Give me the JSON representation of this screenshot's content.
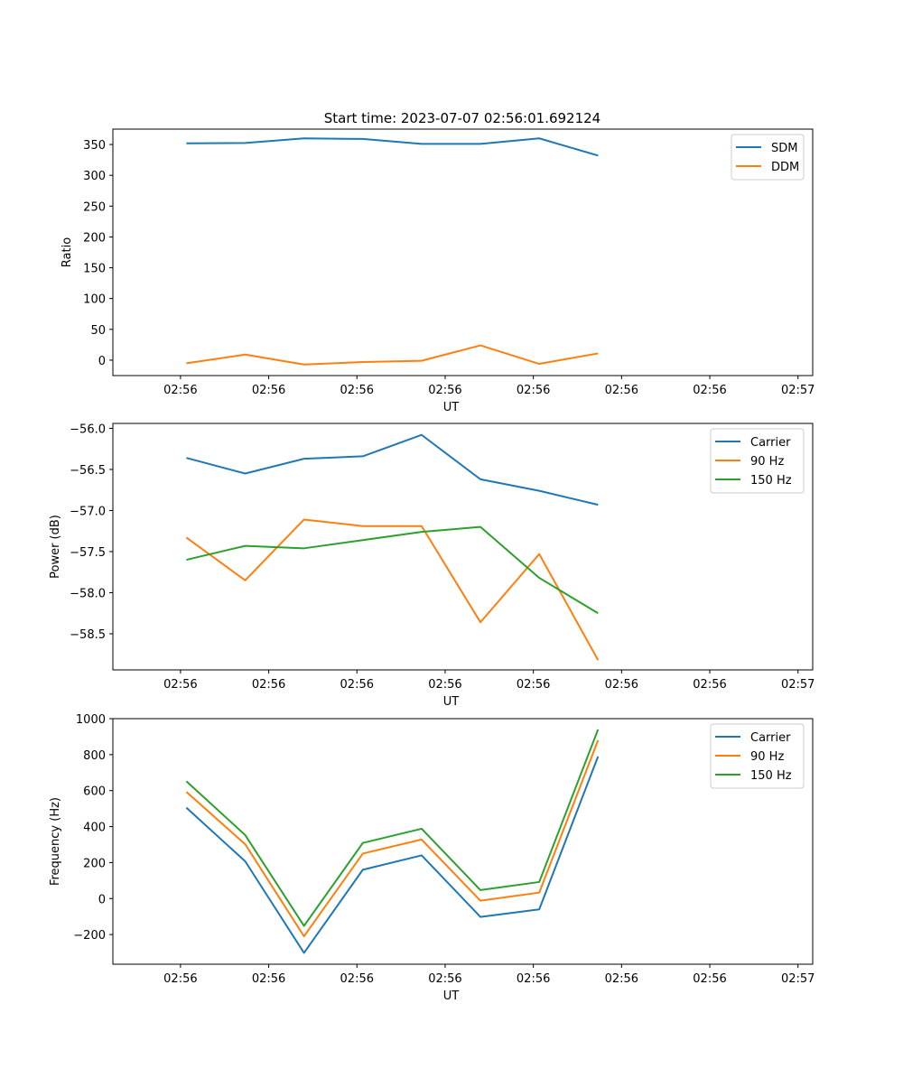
{
  "figure_title": "Start time: 2023-07-07 02:56:01.692124",
  "colors": {
    "blue": "#1f77b4",
    "orange": "#ff7f0e",
    "green": "#2ca02c"
  },
  "chart_data": [
    {
      "type": "line",
      "title": "Start time: 2023-07-07 02:56:01.692124",
      "xlabel": "UT",
      "ylabel": "Ratio",
      "x_tick_labels": [
        "02:56",
        "02:56",
        "02:56",
        "02:56",
        "02:56",
        "02:56",
        "02:56",
        "02:57"
      ],
      "y_ticks": [
        0,
        50,
        100,
        150,
        200,
        250,
        300,
        350
      ],
      "ylim": [
        -25,
        375
      ],
      "x_index_range": [
        -0.5,
        8.5
      ],
      "x": [
        0,
        1,
        2,
        3,
        4,
        5,
        6,
        7
      ],
      "series": [
        {
          "name": "SDM",
          "color": "#1f77b4",
          "values": [
            352,
            352.5,
            360,
            359,
            351,
            351,
            360,
            332
          ]
        },
        {
          "name": "DDM",
          "color": "#ff7f0e",
          "values": [
            -5,
            9,
            -7,
            -3,
            -1,
            24,
            -6,
            11
          ]
        }
      ],
      "legend_position": "top-right"
    },
    {
      "type": "line",
      "title": "",
      "xlabel": "UT",
      "ylabel": "Power (dB)",
      "x_tick_labels": [
        "02:56",
        "02:56",
        "02:56",
        "02:56",
        "02:56",
        "02:56",
        "02:56",
        "02:57"
      ],
      "y_ticks": [
        -58.5,
        -58.0,
        -57.5,
        -57.0,
        -56.5,
        -56.0
      ],
      "y_tick_labels": [
        "−58.5",
        "−58.0",
        "−57.5",
        "−57.0",
        "−56.5",
        "−56.0"
      ],
      "ylim": [
        -58.94,
        -55.94
      ],
      "x_index_range": [
        -0.5,
        8.5
      ],
      "x": [
        0,
        1,
        2,
        3,
        4,
        5,
        6,
        7
      ],
      "series": [
        {
          "name": "Carrier",
          "color": "#1f77b4",
          "values": [
            -56.36,
            -56.55,
            -56.37,
            -56.34,
            -56.08,
            -56.62,
            -56.76,
            -56.93
          ]
        },
        {
          "name": "90 Hz",
          "color": "#ff7f0e",
          "values": [
            -57.33,
            -57.85,
            -57.11,
            -57.19,
            -57.19,
            -58.36,
            -57.53,
            -58.82
          ]
        },
        {
          "name": "150 Hz",
          "color": "#2ca02c",
          "values": [
            -57.6,
            -57.43,
            -57.46,
            -57.36,
            -57.26,
            -57.2,
            -57.82,
            -58.25
          ]
        }
      ],
      "legend_position": "top-right"
    },
    {
      "type": "line",
      "title": "",
      "xlabel": "UT",
      "ylabel": "Frequency (Hz)",
      "x_tick_labels": [
        "02:56",
        "02:56",
        "02:56",
        "02:56",
        "02:56",
        "02:56",
        "02:56",
        "02:57"
      ],
      "y_ticks": [
        -200,
        0,
        200,
        400,
        600,
        800,
        1000
      ],
      "y_tick_labels": [
        "−200",
        "0",
        "200",
        "400",
        "600",
        "800",
        "1000"
      ],
      "ylim": [
        -365,
        1000
      ],
      "x_index_range": [
        -0.5,
        8.5
      ],
      "x": [
        0,
        1,
        2,
        3,
        4,
        5,
        6,
        7
      ],
      "series": [
        {
          "name": "Carrier",
          "color": "#1f77b4",
          "values": [
            505,
            207,
            -302,
            160,
            240,
            -102,
            -60,
            790
          ]
        },
        {
          "name": "90 Hz",
          "color": "#ff7f0e",
          "values": [
            593,
            302,
            -210,
            250,
            328,
            -12,
            33,
            880
          ]
        },
        {
          "name": "150 Hz",
          "color": "#2ca02c",
          "values": [
            652,
            353,
            -152,
            309,
            388,
            47,
            92,
            940
          ]
        }
      ],
      "legend_position": "top-right"
    }
  ]
}
